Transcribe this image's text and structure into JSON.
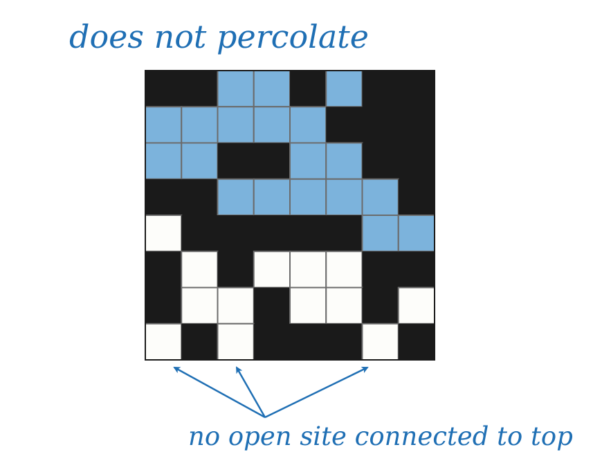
{
  "title": "does not percolate",
  "caption": "no open site connected to top",
  "colors": {
    "blocked": "#1a1a1a",
    "open": "#fdfdfa",
    "full": "#7cb3dc",
    "grid_line": "#6b6b6b",
    "accent": "#1f6fb4"
  },
  "legend_codes": {
    "B": "blocked site",
    "O": "open site",
    "F": "full site"
  },
  "grid": {
    "rows": 8,
    "cols": 8,
    "cells": [
      [
        "B",
        "B",
        "F",
        "F",
        "B",
        "F",
        "B",
        "B"
      ],
      [
        "F",
        "F",
        "F",
        "F",
        "F",
        "B",
        "B",
        "B"
      ],
      [
        "F",
        "F",
        "B",
        "B",
        "F",
        "F",
        "B",
        "B"
      ],
      [
        "B",
        "B",
        "F",
        "F",
        "F",
        "F",
        "F",
        "B"
      ],
      [
        "O",
        "B",
        "B",
        "B",
        "B",
        "B",
        "F",
        "F"
      ],
      [
        "B",
        "O",
        "B",
        "O",
        "O",
        "O",
        "B",
        "B"
      ],
      [
        "B",
        "O",
        "O",
        "B",
        "O",
        "O",
        "B",
        "O"
      ],
      [
        "O",
        "B",
        "O",
        "B",
        "B",
        "B",
        "O",
        "B"
      ]
    ]
  },
  "arrows": {
    "target_columns": [
      1,
      2,
      6
    ]
  }
}
